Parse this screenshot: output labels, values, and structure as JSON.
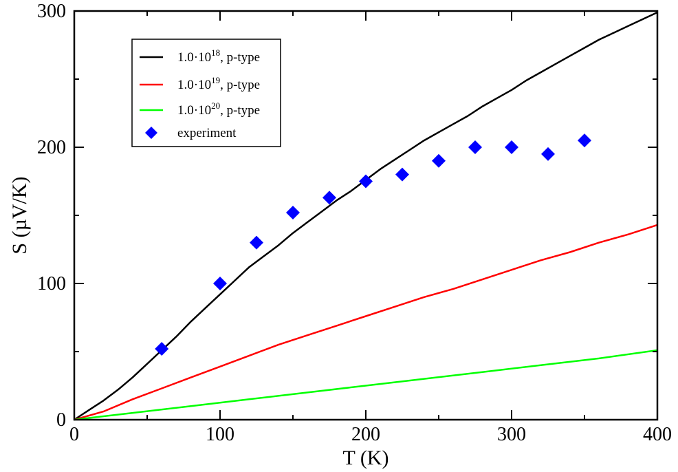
{
  "chart_data": {
    "type": "line",
    "title": "",
    "xlabel": "T (K)",
    "ylabel": "S (µV/K)",
    "xlim": [
      0,
      400
    ],
    "ylim": [
      0,
      300
    ],
    "x_ticks": [
      0,
      100,
      200,
      300,
      400
    ],
    "x_tick_labels": [
      "0",
      "100",
      "200",
      "300",
      "400"
    ],
    "y_ticks": [
      0,
      100,
      200,
      300
    ],
    "y_tick_labels": [
      "0",
      "100",
      "200",
      "300"
    ],
    "grid": false,
    "legend_position": "top-left",
    "series": [
      {
        "name": "1.0·10^18, p-type",
        "legend_base": "1.0·10",
        "legend_exp": "18",
        "legend_suffix": ", p-type",
        "kind": "line",
        "color": "#000000",
        "x": [
          0,
          10,
          20,
          30,
          40,
          50,
          60,
          70,
          80,
          90,
          100,
          110,
          120,
          130,
          140,
          150,
          160,
          170,
          180,
          190,
          200,
          210,
          220,
          230,
          240,
          250,
          260,
          270,
          280,
          290,
          300,
          310,
          320,
          330,
          340,
          350,
          360,
          370,
          380,
          390,
          400
        ],
        "y": [
          0,
          7,
          14,
          22,
          31,
          41,
          51,
          61,
          72,
          82,
          92,
          102,
          112,
          120,
          128,
          137,
          145,
          153,
          161,
          168,
          176,
          184,
          191,
          198,
          205,
          211,
          217,
          223,
          230,
          236,
          242,
          249,
          255,
          261,
          267,
          273,
          279,
          284,
          289,
          294,
          299
        ]
      },
      {
        "name": "1.0·10^19, p-type",
        "legend_base": "1.0·10",
        "legend_exp": "19",
        "legend_suffix": ", p-type",
        "kind": "line",
        "color": "#ff0000",
        "x": [
          0,
          20,
          40,
          60,
          80,
          100,
          120,
          140,
          160,
          180,
          200,
          220,
          240,
          260,
          280,
          300,
          320,
          340,
          360,
          380,
          400
        ],
        "y": [
          0,
          6,
          15,
          23,
          31,
          39,
          47,
          55,
          62,
          69,
          76,
          83,
          90,
          96,
          103,
          110,
          117,
          123,
          130,
          136,
          143
        ]
      },
      {
        "name": "1.0·10^20, p-type",
        "legend_base": "1.0·10",
        "legend_exp": "20",
        "legend_suffix": ", p-type",
        "kind": "line",
        "color": "#00ff00",
        "x": [
          0,
          40,
          80,
          120,
          160,
          200,
          240,
          280,
          320,
          360,
          400
        ],
        "y": [
          0,
          5,
          10,
          15,
          20,
          25,
          30,
          35,
          40,
          45,
          51
        ]
      },
      {
        "name": "experiment",
        "legend_label": "experiment",
        "kind": "scatter",
        "marker": "diamond",
        "color": "#0000ff",
        "x": [
          60,
          100,
          125,
          150,
          175,
          200,
          225,
          250,
          275,
          300,
          325,
          350
        ],
        "y": [
          52,
          100,
          130,
          152,
          163,
          175,
          180,
          190,
          200,
          200,
          195,
          205
        ]
      }
    ]
  }
}
